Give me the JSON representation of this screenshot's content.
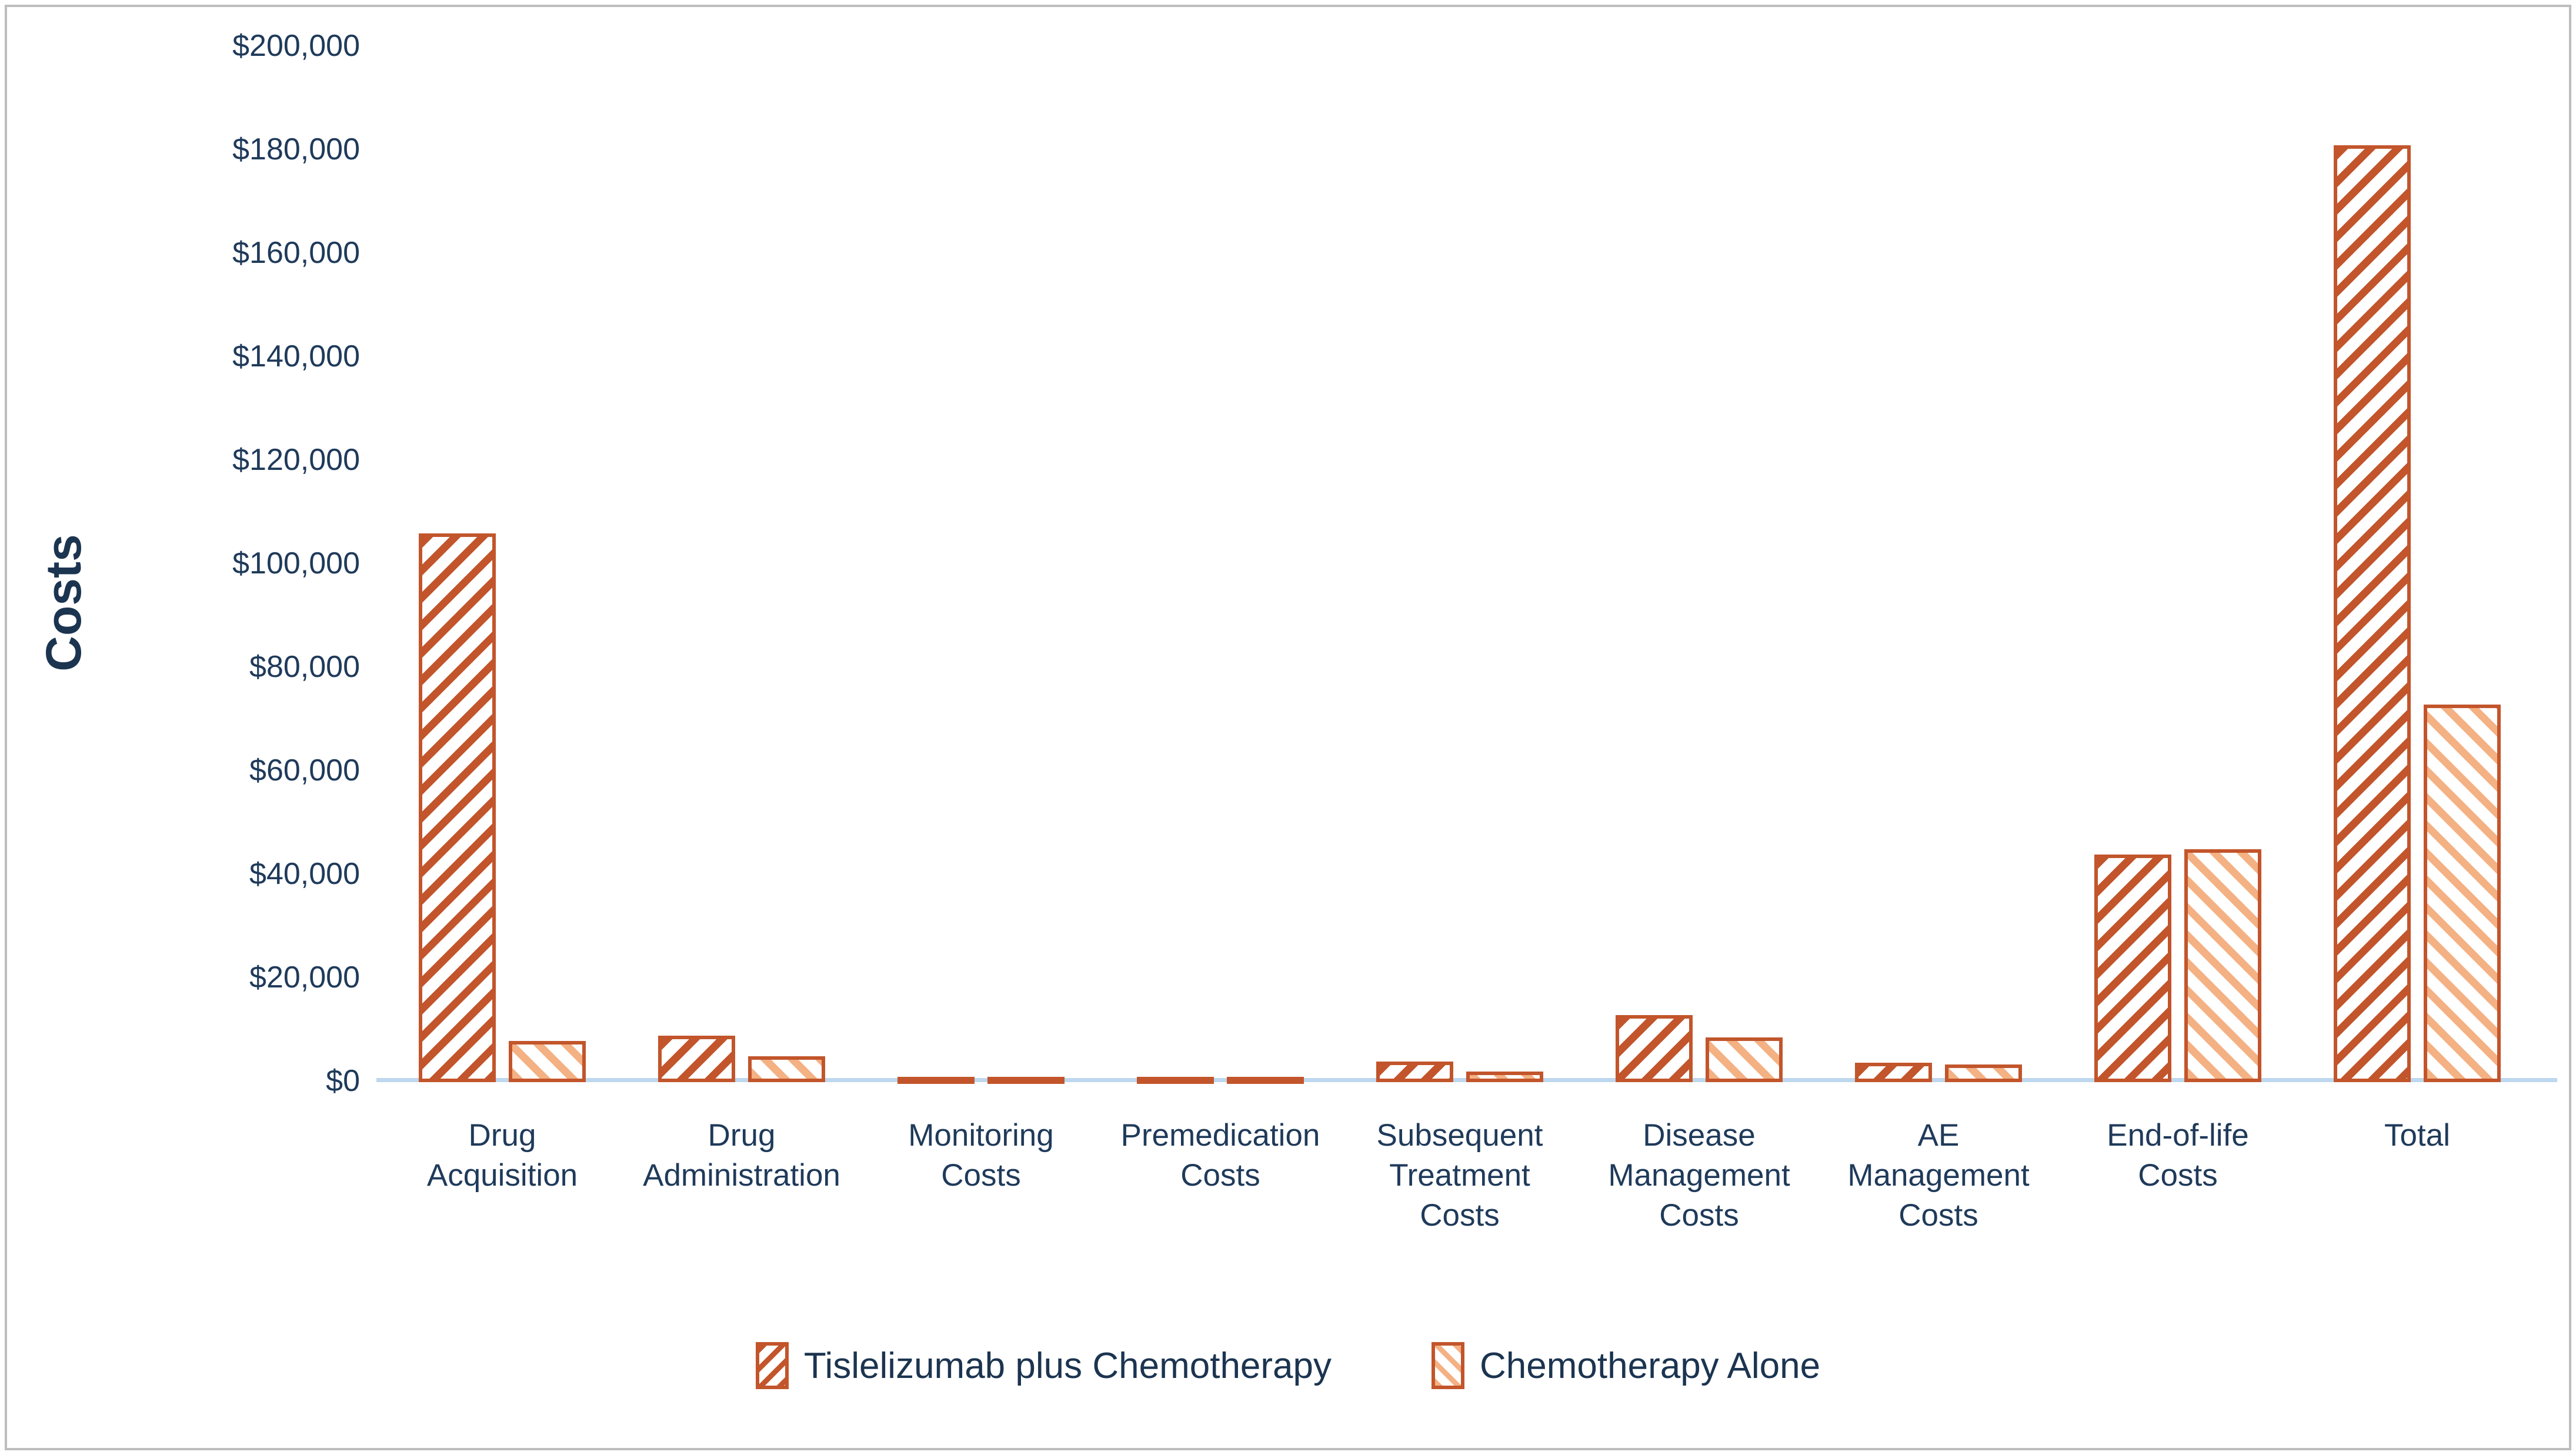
{
  "chart_data": {
    "type": "bar",
    "title": "",
    "xlabel": "",
    "ylabel": "Costs",
    "grid": false,
    "legend_position": "bottom",
    "y_axis": {
      "min": 0,
      "max": 200000,
      "step": 20000,
      "tick_labels": [
        "$0",
        "$20,000",
        "$40,000",
        "$60,000",
        "$80,000",
        "$100,000",
        "$120,000",
        "$140,000",
        "$160,000",
        "$180,000",
        "$200,000"
      ]
    },
    "categories": [
      "Drug\nAcquisition",
      "Drug\nAdministration",
      "Monitoring\nCosts",
      "Premedication\nCosts",
      "Subsequent\nTreatment\nCosts",
      "Disease\nManagement\nCosts",
      "AE\nManagement\nCosts",
      "End-of-life\nCosts",
      "Total"
    ],
    "series": [
      {
        "name": "Tislelizumab plus Chemotherapy",
        "pattern": "diagonal-up-hatch",
        "stripe_color": "#C2552B",
        "values": [
          106000,
          9000,
          500,
          1000,
          4000,
          13000,
          3700,
          44000,
          181000
        ]
      },
      {
        "name": "Chemotherapy Alone",
        "pattern": "diagonal-down-hatch",
        "stripe_color": "#F4B183",
        "values": [
          8000,
          5000,
          500,
          1000,
          2000,
          8600,
          3400,
          45000,
          73000
        ]
      }
    ],
    "colors": {
      "bar_border": "#C2552B",
      "axis_line": "#BDD7EE",
      "text": "#1F3A5A",
      "frame_border": "#BDBDBD"
    }
  }
}
